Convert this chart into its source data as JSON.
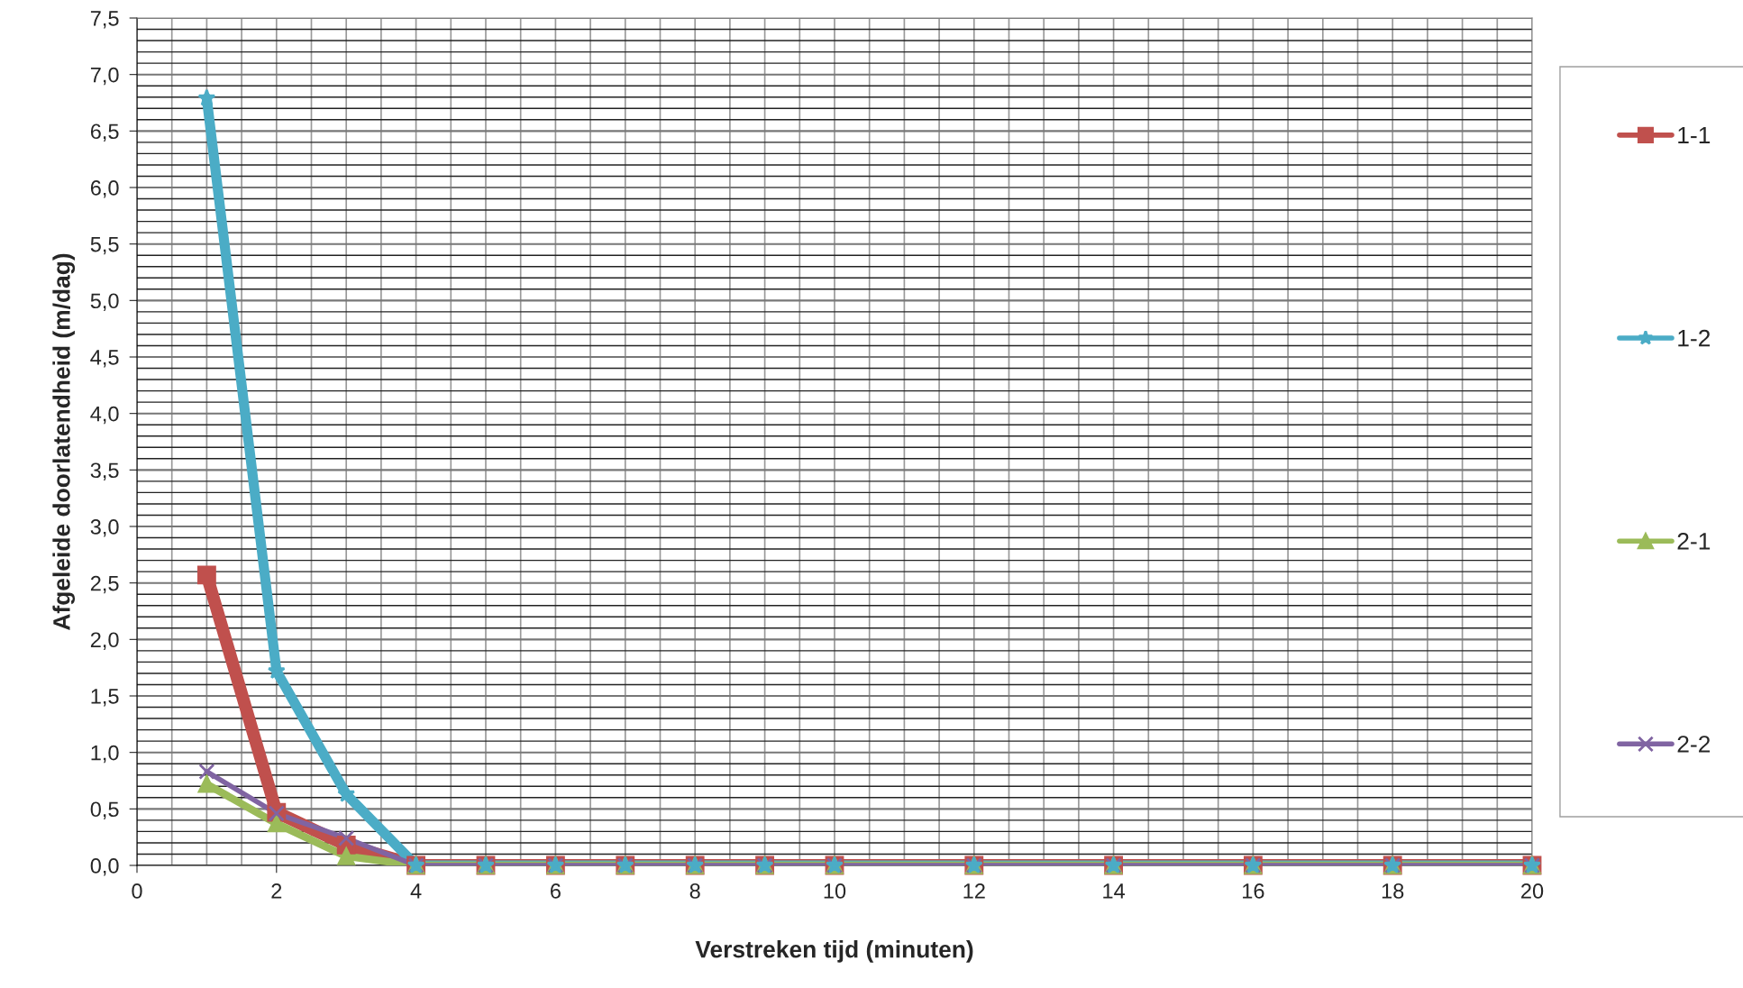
{
  "chart_data": {
    "type": "line",
    "xlabel": "Verstreken tijd (minuten)",
    "ylabel": "Afgeleide doorlatendheid (m/dag)",
    "x": [
      1,
      2,
      3,
      4,
      5,
      6,
      7,
      8,
      9,
      10,
      12,
      14,
      16,
      18,
      20
    ],
    "series": [
      {
        "name": "1-1",
        "color": "#c0504d",
        "marker": "square",
        "values": [
          2.57,
          0.47,
          0.18,
          0,
          0,
          0,
          0,
          0,
          0,
          0,
          0,
          0,
          0,
          0,
          0
        ]
      },
      {
        "name": "1-2",
        "color": "#4bacc6",
        "marker": "star",
        "values": [
          6.79,
          1.72,
          0.63,
          0,
          0,
          0,
          0,
          0,
          0,
          0,
          0,
          0,
          0,
          0,
          0
        ]
      },
      {
        "name": "2-1",
        "color": "#9bbb59",
        "marker": "triangle",
        "values": [
          0.72,
          0.37,
          0.08,
          0,
          0,
          0,
          0,
          0,
          0,
          0,
          0,
          0,
          0,
          0,
          0
        ]
      },
      {
        "name": "2-2",
        "color": "#8064a2",
        "marker": "cross",
        "values": [
          0.83,
          0.46,
          0.24,
          0,
          0,
          0,
          0,
          0,
          0,
          0,
          0,
          0,
          0,
          0,
          0
        ]
      }
    ],
    "xlim": [
      0,
      20
    ],
    "xticks": [
      0,
      2,
      4,
      6,
      8,
      10,
      12,
      14,
      16,
      18,
      20
    ],
    "ylim": [
      0,
      7.5
    ],
    "yticks": [
      {
        "value": 0,
        "label": "0,0"
      },
      {
        "value": 0.5,
        "label": "0,5"
      },
      {
        "value": 1,
        "label": "1,0"
      },
      {
        "value": 1.5,
        "label": "1,5"
      },
      {
        "value": 2,
        "label": "2,0"
      },
      {
        "value": 2.5,
        "label": "2,5"
      },
      {
        "value": 3,
        "label": "3,0"
      },
      {
        "value": 3.5,
        "label": "3,5"
      },
      {
        "value": 4,
        "label": "4,0"
      },
      {
        "value": 4.5,
        "label": "4,5"
      },
      {
        "value": 5,
        "label": "5,0"
      },
      {
        "value": 5.5,
        "label": "5,5"
      },
      {
        "value": 6,
        "label": "6,0"
      },
      {
        "value": 6.5,
        "label": "6,5"
      },
      {
        "value": 7,
        "label": "7,0"
      },
      {
        "value": 7.5,
        "label": "7,5"
      }
    ],
    "grid": true,
    "legend": "right",
    "line_style": "solid"
  }
}
